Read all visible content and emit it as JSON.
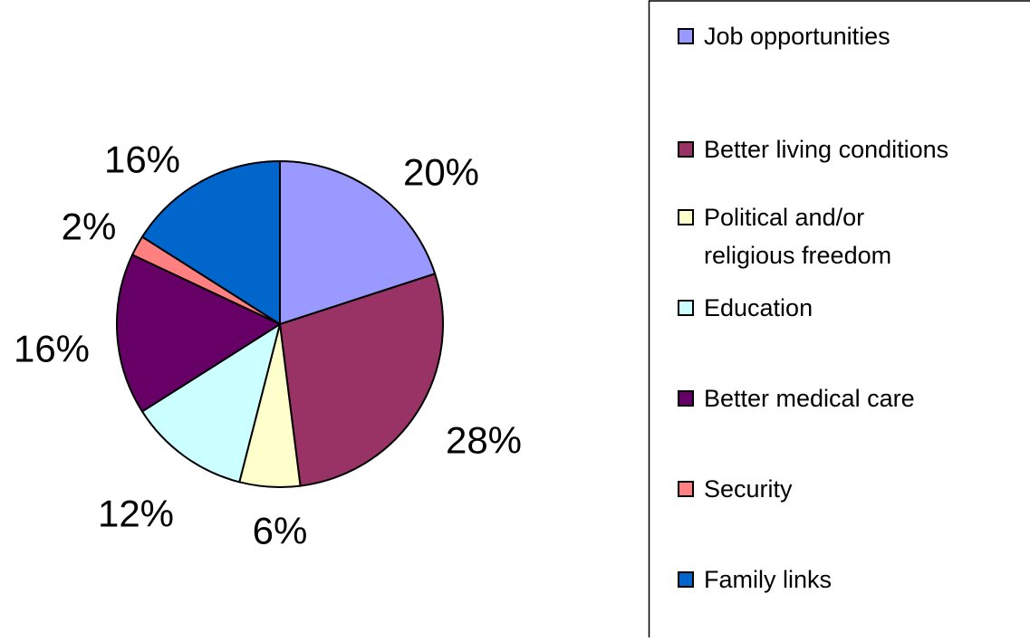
{
  "chart_data": {
    "type": "pie",
    "title": "",
    "categories": [
      "Job opportunities",
      "Better living conditions",
      "Political and/or religious freedom",
      "Education",
      "Better medical care",
      "Security",
      "Family links"
    ],
    "values": [
      20,
      28,
      6,
      12,
      16,
      2,
      16
    ],
    "data_labels": [
      "20%",
      "28%",
      "6%",
      "12%",
      "16%",
      "2%",
      "16%"
    ],
    "colors": [
      "#9999FF",
      "#993366",
      "#FFFFCC",
      "#CCFFFF",
      "#660066",
      "#FF8080",
      "#0066CC"
    ],
    "legend": {
      "position": "right",
      "items": [
        {
          "lines": [
            "Job opportunities"
          ]
        },
        {
          "lines": [
            "Better living conditions"
          ]
        },
        {
          "lines": [
            "Political and/or",
            "religious freedom"
          ]
        },
        {
          "lines": [
            "Education"
          ]
        },
        {
          "lines": [
            "Better medical care"
          ]
        },
        {
          "lines": [
            "Security"
          ]
        },
        {
          "lines": [
            "Family links"
          ]
        }
      ]
    }
  }
}
